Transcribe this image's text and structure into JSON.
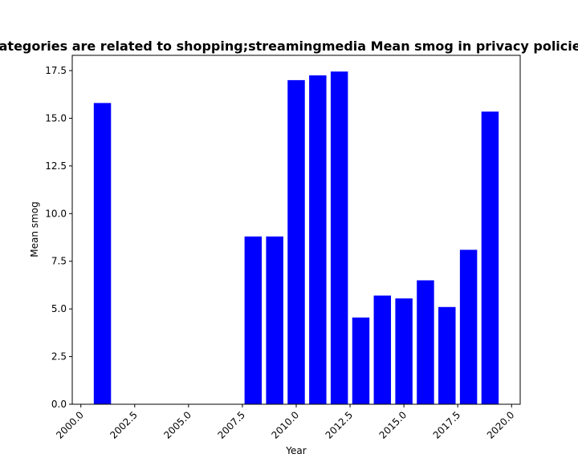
{
  "chart_data": {
    "type": "bar",
    "title": "Categories are related to shopping;streamingmedia Mean smog in privacy policies",
    "xlabel": "Year",
    "ylabel": "Mean smog",
    "x": [
      2001,
      2008,
      2009,
      2010,
      2011,
      2012,
      2013,
      2014,
      2015,
      2016,
      2017,
      2018,
      2019
    ],
    "values": [
      15.8,
      8.8,
      8.8,
      17.0,
      17.25,
      17.45,
      4.55,
      5.7,
      5.55,
      6.5,
      5.1,
      8.1,
      15.35
    ],
    "xlim": [
      1999.6,
      2020.4
    ],
    "ylim": [
      0,
      18.3
    ],
    "xticks": [
      2000.0,
      2002.5,
      2005.0,
      2007.5,
      2010.0,
      2012.5,
      2015.0,
      2017.5,
      2020.0
    ],
    "xtick_labels": [
      "2000.0",
      "2002.5",
      "2005.0",
      "2007.5",
      "2010.0",
      "2012.5",
      "2015.0",
      "2017.5",
      "2020.0"
    ],
    "yticks": [
      0.0,
      2.5,
      5.0,
      7.5,
      10.0,
      12.5,
      15.0,
      17.5
    ],
    "ytick_labels": [
      "0.0",
      "2.5",
      "5.0",
      "7.5",
      "10.0",
      "12.5",
      "15.0",
      "17.5"
    ],
    "bar_color": "#0000ff",
    "grid": false,
    "legend": "none"
  }
}
